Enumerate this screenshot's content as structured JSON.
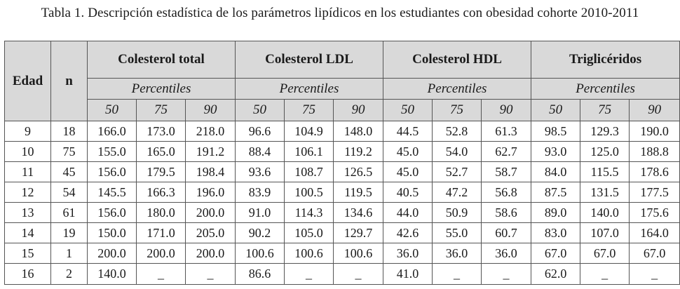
{
  "caption": "Tabla 1. Descripción estadística de los parámetros lipídicos en los estudiantes con obesidad cohorte 2010-2011",
  "headers": {
    "edad": "Edad",
    "n": "n",
    "groups": [
      "Colesterol total",
      "Colesterol LDL",
      "Colesterol HDL",
      "Triglicéridos"
    ],
    "percentiles_label": "Percentiles",
    "percentile_values": [
      "50",
      "75",
      "90"
    ]
  },
  "rows": [
    {
      "edad": "9",
      "n": "18",
      "ct": [
        "166.0",
        "173.0",
        "218.0"
      ],
      "ldl": [
        "96.6",
        "104.9",
        "148.0"
      ],
      "hdl": [
        "44.5",
        "52.8",
        "61.3"
      ],
      "tg": [
        "98.5",
        "129.3",
        "190.0"
      ]
    },
    {
      "edad": "10",
      "n": "75",
      "ct": [
        "155.0",
        "165.0",
        "191.2"
      ],
      "ldl": [
        "88.4",
        "106.1",
        "119.2"
      ],
      "hdl": [
        "45.0",
        "54.0",
        "62.7"
      ],
      "tg": [
        "93.0",
        "125.0",
        "188.8"
      ]
    },
    {
      "edad": "11",
      "n": "45",
      "ct": [
        "156.0",
        "179.5",
        "198.4"
      ],
      "ldl": [
        "93.6",
        "108.7",
        "126.5"
      ],
      "hdl": [
        "45.0",
        "52.7",
        "58.7"
      ],
      "tg": [
        "84.0",
        "115.5",
        "178.6"
      ]
    },
    {
      "edad": "12",
      "n": "54",
      "ct": [
        "145.5",
        "166.3",
        "196.0"
      ],
      "ldl": [
        "83.9",
        "100.5",
        "119.5"
      ],
      "hdl": [
        "40.5",
        "47.2",
        "56.8"
      ],
      "tg": [
        "87.5",
        "131.5",
        "177.5"
      ]
    },
    {
      "edad": "13",
      "n": "61",
      "ct": [
        "156.0",
        "180.0",
        "200.0"
      ],
      "ldl": [
        "91.0",
        "114.3",
        "134.6"
      ],
      "hdl": [
        "44.0",
        "50.9",
        "58.6"
      ],
      "tg": [
        "89.0",
        "140.0",
        "175.6"
      ]
    },
    {
      "edad": "14",
      "n": "19",
      "ct": [
        "150.0",
        "171.0",
        "205.0"
      ],
      "ldl": [
        "90.2",
        "105.0",
        "129.7"
      ],
      "hdl": [
        "42.6",
        "55.0",
        "60.7"
      ],
      "tg": [
        "83.0",
        "107.0",
        "164.0"
      ]
    },
    {
      "edad": "15",
      "n": "1",
      "ct": [
        "200.0",
        "200.0",
        "200.0"
      ],
      "ldl": [
        "100.6",
        "100.6",
        "100.6"
      ],
      "hdl": [
        "36.0",
        "36.0",
        "36.0"
      ],
      "tg": [
        "67.0",
        "67.0",
        "67.0"
      ]
    },
    {
      "edad": "16",
      "n": "2",
      "ct": [
        "140.0",
        "_",
        "_"
      ],
      "ldl": [
        "86.6",
        "_",
        "_"
      ],
      "hdl": [
        "41.0",
        "_",
        "_"
      ],
      "tg": [
        "62.0",
        "_",
        "_"
      ]
    }
  ]
}
